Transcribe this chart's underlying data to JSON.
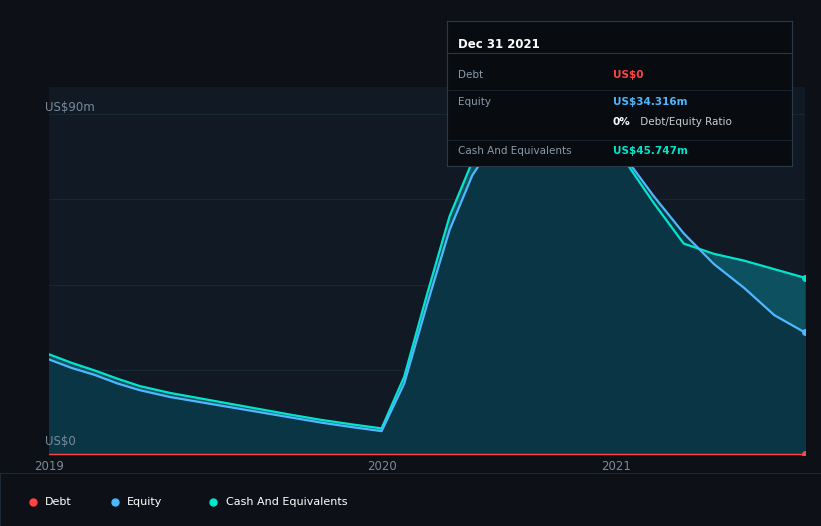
{
  "background_color": "#0d1117",
  "plot_bg_color": "#111a24",
  "ylabel_top": "US$90m",
  "ylabel_bottom": "US$0",
  "x_ticks": [
    "2019",
    "2020",
    "2021"
  ],
  "debt_color": "#ff4444",
  "equity_color": "#4db8ff",
  "cash_color": "#00e5cc",
  "fill_main_color": "#0d4455",
  "fill_upper_color": "#0a5565",
  "grid_color": "#1a2a3a",
  "label_color": "#7a8a9a",
  "tooltip": {
    "bg": "#080c10",
    "border": "#2a3a4a",
    "title": "Dec 31 2021",
    "rows": [
      {
        "label": "Debt",
        "value": "US$0",
        "value_color": "#ff4444"
      },
      {
        "label": "Equity",
        "value": "US$34.316m",
        "value_color": "#4db8ff"
      },
      {
        "label": "",
        "value": "",
        "pct": "0%",
        "ratio": " Debt/Equity Ratio",
        "value_color": "#ffffff"
      },
      {
        "label": "Cash And Equivalents",
        "value": "US$45.747m",
        "value_color": "#00e5cc"
      }
    ]
  },
  "legend": [
    {
      "label": "Debt",
      "color": "#ff4444"
    },
    {
      "label": "Equity",
      "color": "#4db8ff"
    },
    {
      "label": "Cash And Equivalents",
      "color": "#00e5cc"
    }
  ],
  "x_data": [
    0.0,
    0.03,
    0.06,
    0.09,
    0.12,
    0.16,
    0.2,
    0.24,
    0.28,
    0.32,
    0.36,
    0.4,
    0.44,
    0.47,
    0.5,
    0.53,
    0.56,
    0.59,
    0.62,
    0.65,
    0.68,
    0.72,
    0.76,
    0.8,
    0.84,
    0.88,
    0.92,
    0.96,
    1.0
  ],
  "equity_data": [
    0.28,
    0.255,
    0.235,
    0.21,
    0.19,
    0.17,
    0.155,
    0.14,
    0.125,
    0.11,
    0.095,
    0.082,
    0.07,
    0.21,
    0.44,
    0.66,
    0.82,
    0.92,
    0.96,
    0.98,
    0.99,
    0.97,
    0.88,
    0.76,
    0.65,
    0.56,
    0.49,
    0.41,
    0.36
  ],
  "cash_data": [
    0.295,
    0.27,
    0.248,
    0.224,
    0.202,
    0.182,
    0.166,
    0.15,
    0.134,
    0.118,
    0.103,
    0.09,
    0.078,
    0.23,
    0.47,
    0.7,
    0.86,
    0.96,
    0.99,
    0.998,
    1.0,
    0.97,
    0.87,
    0.74,
    0.62,
    0.59,
    0.57,
    0.545,
    0.52
  ],
  "debt_data": [
    0.0,
    0.0,
    0.0,
    0.0,
    0.0,
    0.0,
    0.0,
    0.0,
    0.0,
    0.0,
    0.0,
    0.0,
    0.0,
    0.0,
    0.0,
    0.0,
    0.0,
    0.0,
    0.0,
    0.0,
    0.0,
    0.0,
    0.0,
    0.0,
    0.0,
    0.0,
    0.0,
    0.0,
    0.0
  ]
}
